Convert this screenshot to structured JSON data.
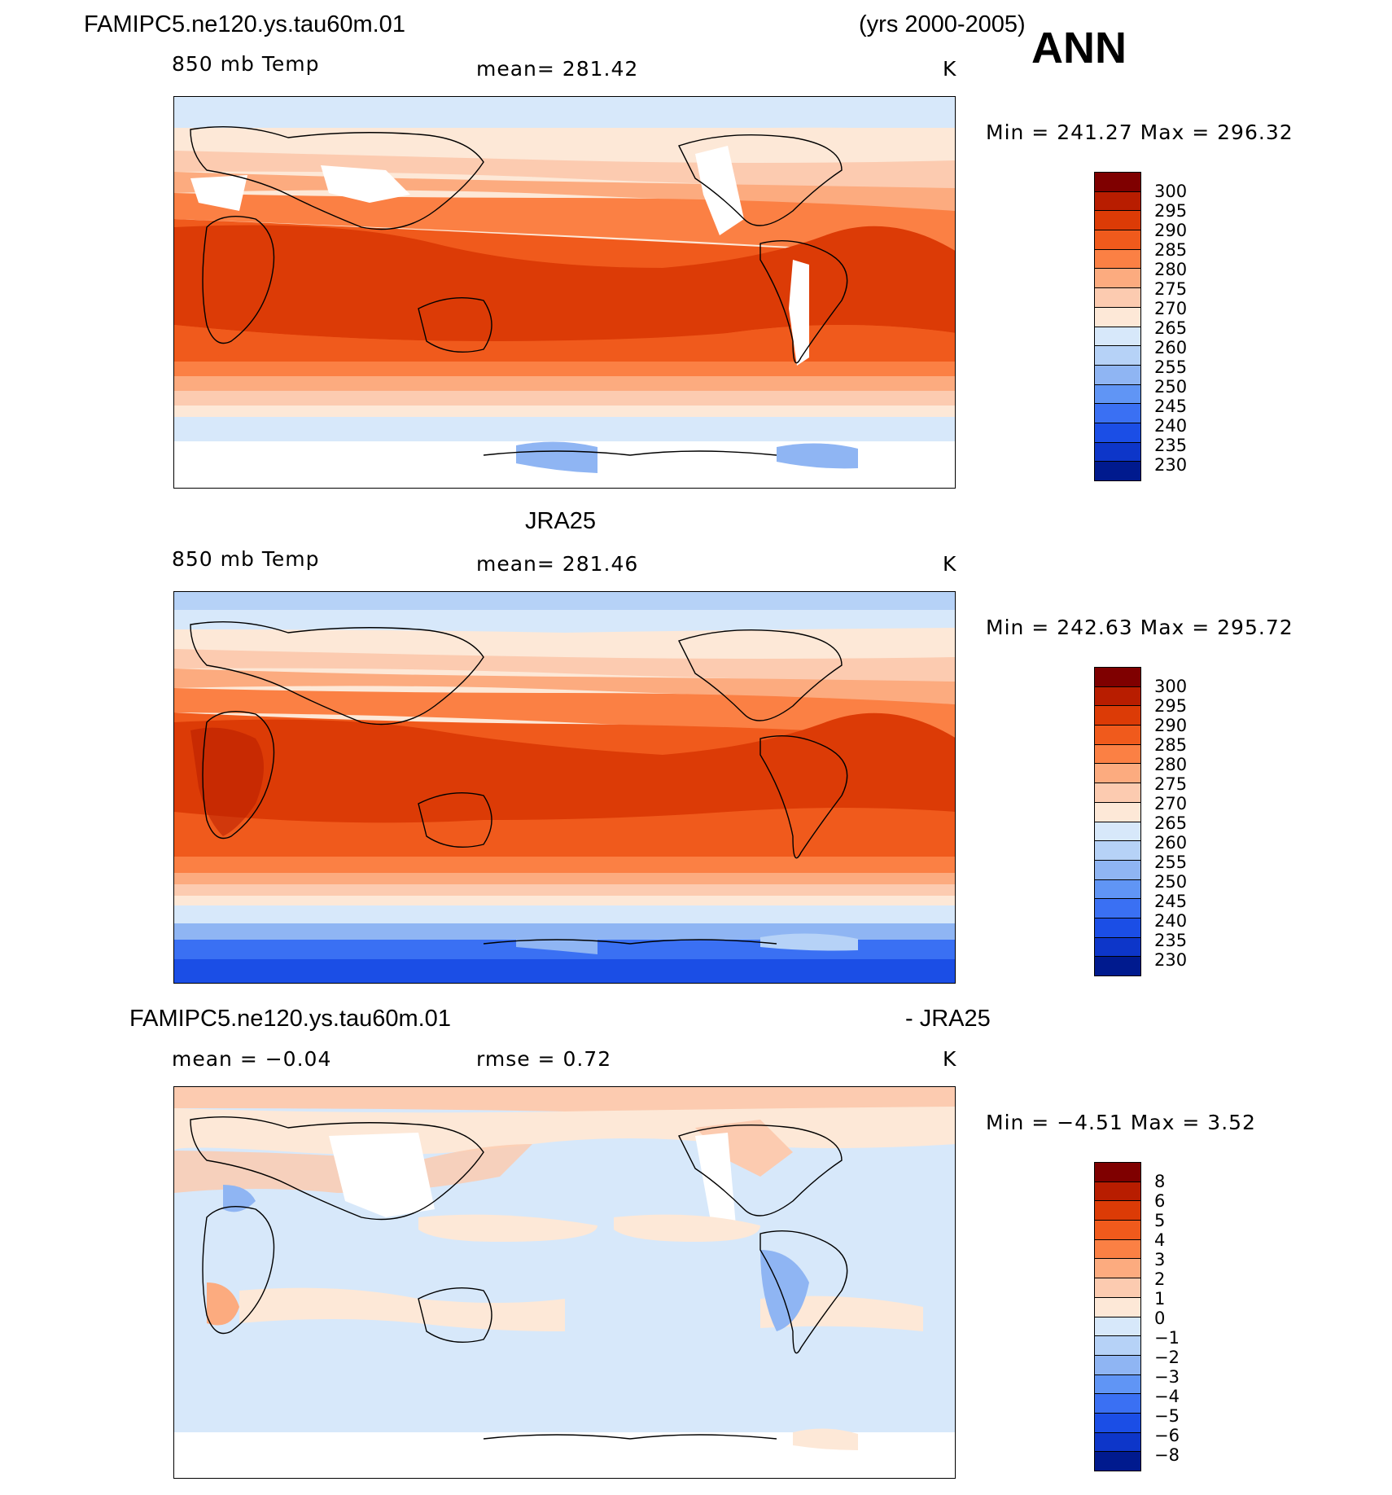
{
  "header": {
    "case_name": "FAMIPC5.ne120.ys.tau60m.01",
    "years": "(yrs 2000-2005)",
    "season": "ANN"
  },
  "palette": [
    "#7f0000",
    "#b81d00",
    "#dc3b06",
    "#f05a1c",
    "#fb8044",
    "#fcab7f",
    "#fccbb0",
    "#fde8d7",
    "#d7e8fa",
    "#b6d2f7",
    "#8fb5f3",
    "#6095f5",
    "#3a70f3",
    "#1b4ee6",
    "#0d36c9",
    "#001a8e"
  ],
  "panels": [
    {
      "id": "model",
      "title": "",
      "left_label": "850 mb Temp",
      "center_label": "mean=  281.42",
      "units": "K",
      "minmax": "Min  =  241.27  Max  =  296.32",
      "levels": [
        "300",
        "295",
        "290",
        "285",
        "280",
        "275",
        "270",
        "265",
        "260",
        "255",
        "250",
        "245",
        "240",
        "235",
        "230"
      ]
    },
    {
      "id": "obs",
      "title": "JRA25",
      "left_label": "850 mb Temp",
      "center_label": "mean=  281.46",
      "units": "K",
      "minmax": "Min  =  242.63  Max  =  295.72",
      "levels": [
        "300",
        "295",
        "290",
        "285",
        "280",
        "275",
        "270",
        "265",
        "260",
        "255",
        "250",
        "245",
        "240",
        "235",
        "230"
      ]
    },
    {
      "id": "diff",
      "title_left": "FAMIPC5.ne120.ys.tau60m.01",
      "title_right": "- JRA25",
      "left_label": "mean  =   −0.04",
      "center_label": "rmse  =     0.72",
      "units": "K",
      "minmax": "Min  =    −4.51  Max  =      3.52",
      "levels": [
        "8",
        "6",
        "5",
        "4",
        "3",
        "2",
        "1",
        "0",
        "−1",
        "−2",
        "−3",
        "−4",
        "−5",
        "−6",
        "−8"
      ]
    }
  ]
}
